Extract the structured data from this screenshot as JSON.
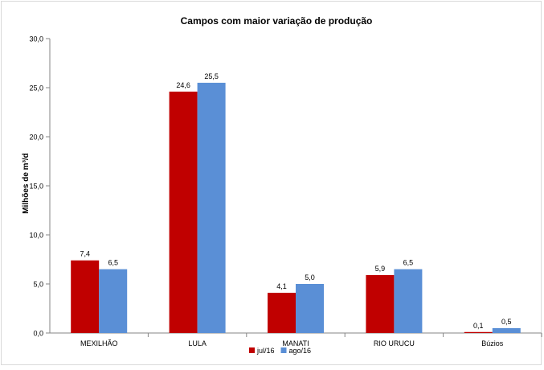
{
  "chart_data": {
    "type": "bar",
    "title": "Campos com maior variação de produção",
    "ylabel": "Milhões de m³/d",
    "xlabel": "",
    "categories": [
      "MEXILHÃO",
      "LULA",
      "MANATI",
      "RIO URUCU",
      "Búzios"
    ],
    "series": [
      {
        "name": "jul/16",
        "color": "#c00000",
        "values": [
          7.4,
          24.6,
          4.1,
          5.9,
          0.1
        ],
        "labels": [
          "7,4",
          "24,6",
          "4,1",
          "5,9",
          "0,1"
        ]
      },
      {
        "name": "ago/16",
        "color": "#5a8fd6",
        "values": [
          6.5,
          25.5,
          5.0,
          6.5,
          0.5
        ],
        "labels": [
          "6,5",
          "25,5",
          "5,0",
          "6,5",
          "0,5"
        ]
      }
    ],
    "ylim": [
      0,
      30
    ],
    "yticks": [
      0,
      5,
      10,
      15,
      20,
      25,
      30
    ],
    "ytick_labels": [
      "0,0",
      "5,0",
      "10,0",
      "15,0",
      "20,0",
      "25,0",
      "30,0"
    ],
    "grid": false,
    "legend_position": "bottom"
  }
}
